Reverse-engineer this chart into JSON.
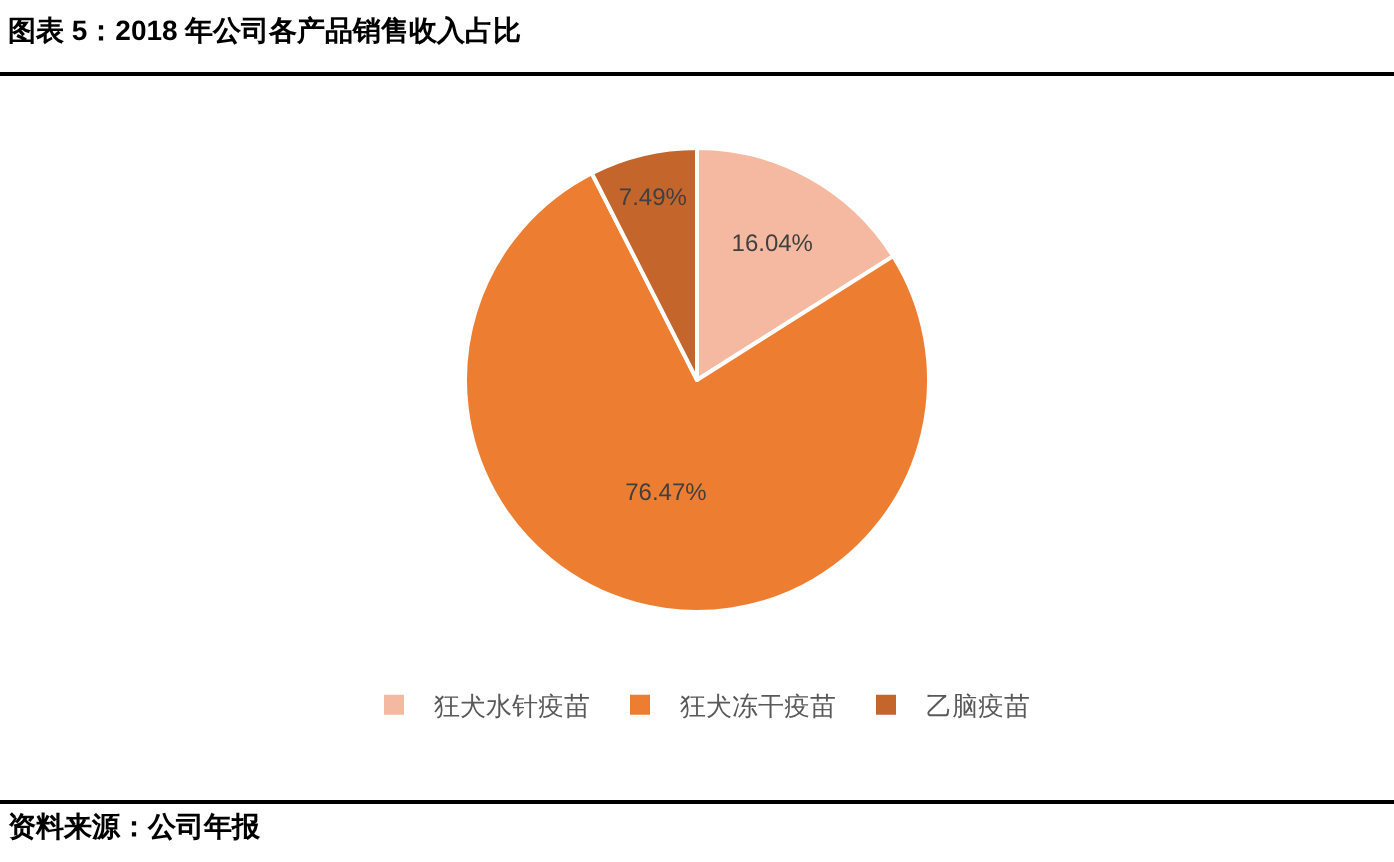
{
  "chart_data": {
    "type": "pie",
    "title": "图表 5：2018 年公司各产品销售收入占比",
    "categories": [
      "狂犬水针疫苗",
      "狂犬冻干疫苗",
      "乙脑疫苗"
    ],
    "values": [
      16.04,
      76.47,
      7.49
    ],
    "colors": [
      "#f4b9a0",
      "#ed7d31",
      "#c4652c"
    ],
    "value_labels": [
      "16.04%",
      "76.47%",
      "7.49%"
    ],
    "legend": "bottom",
    "annotations": [
      "资料来源：公司年报"
    ]
  }
}
